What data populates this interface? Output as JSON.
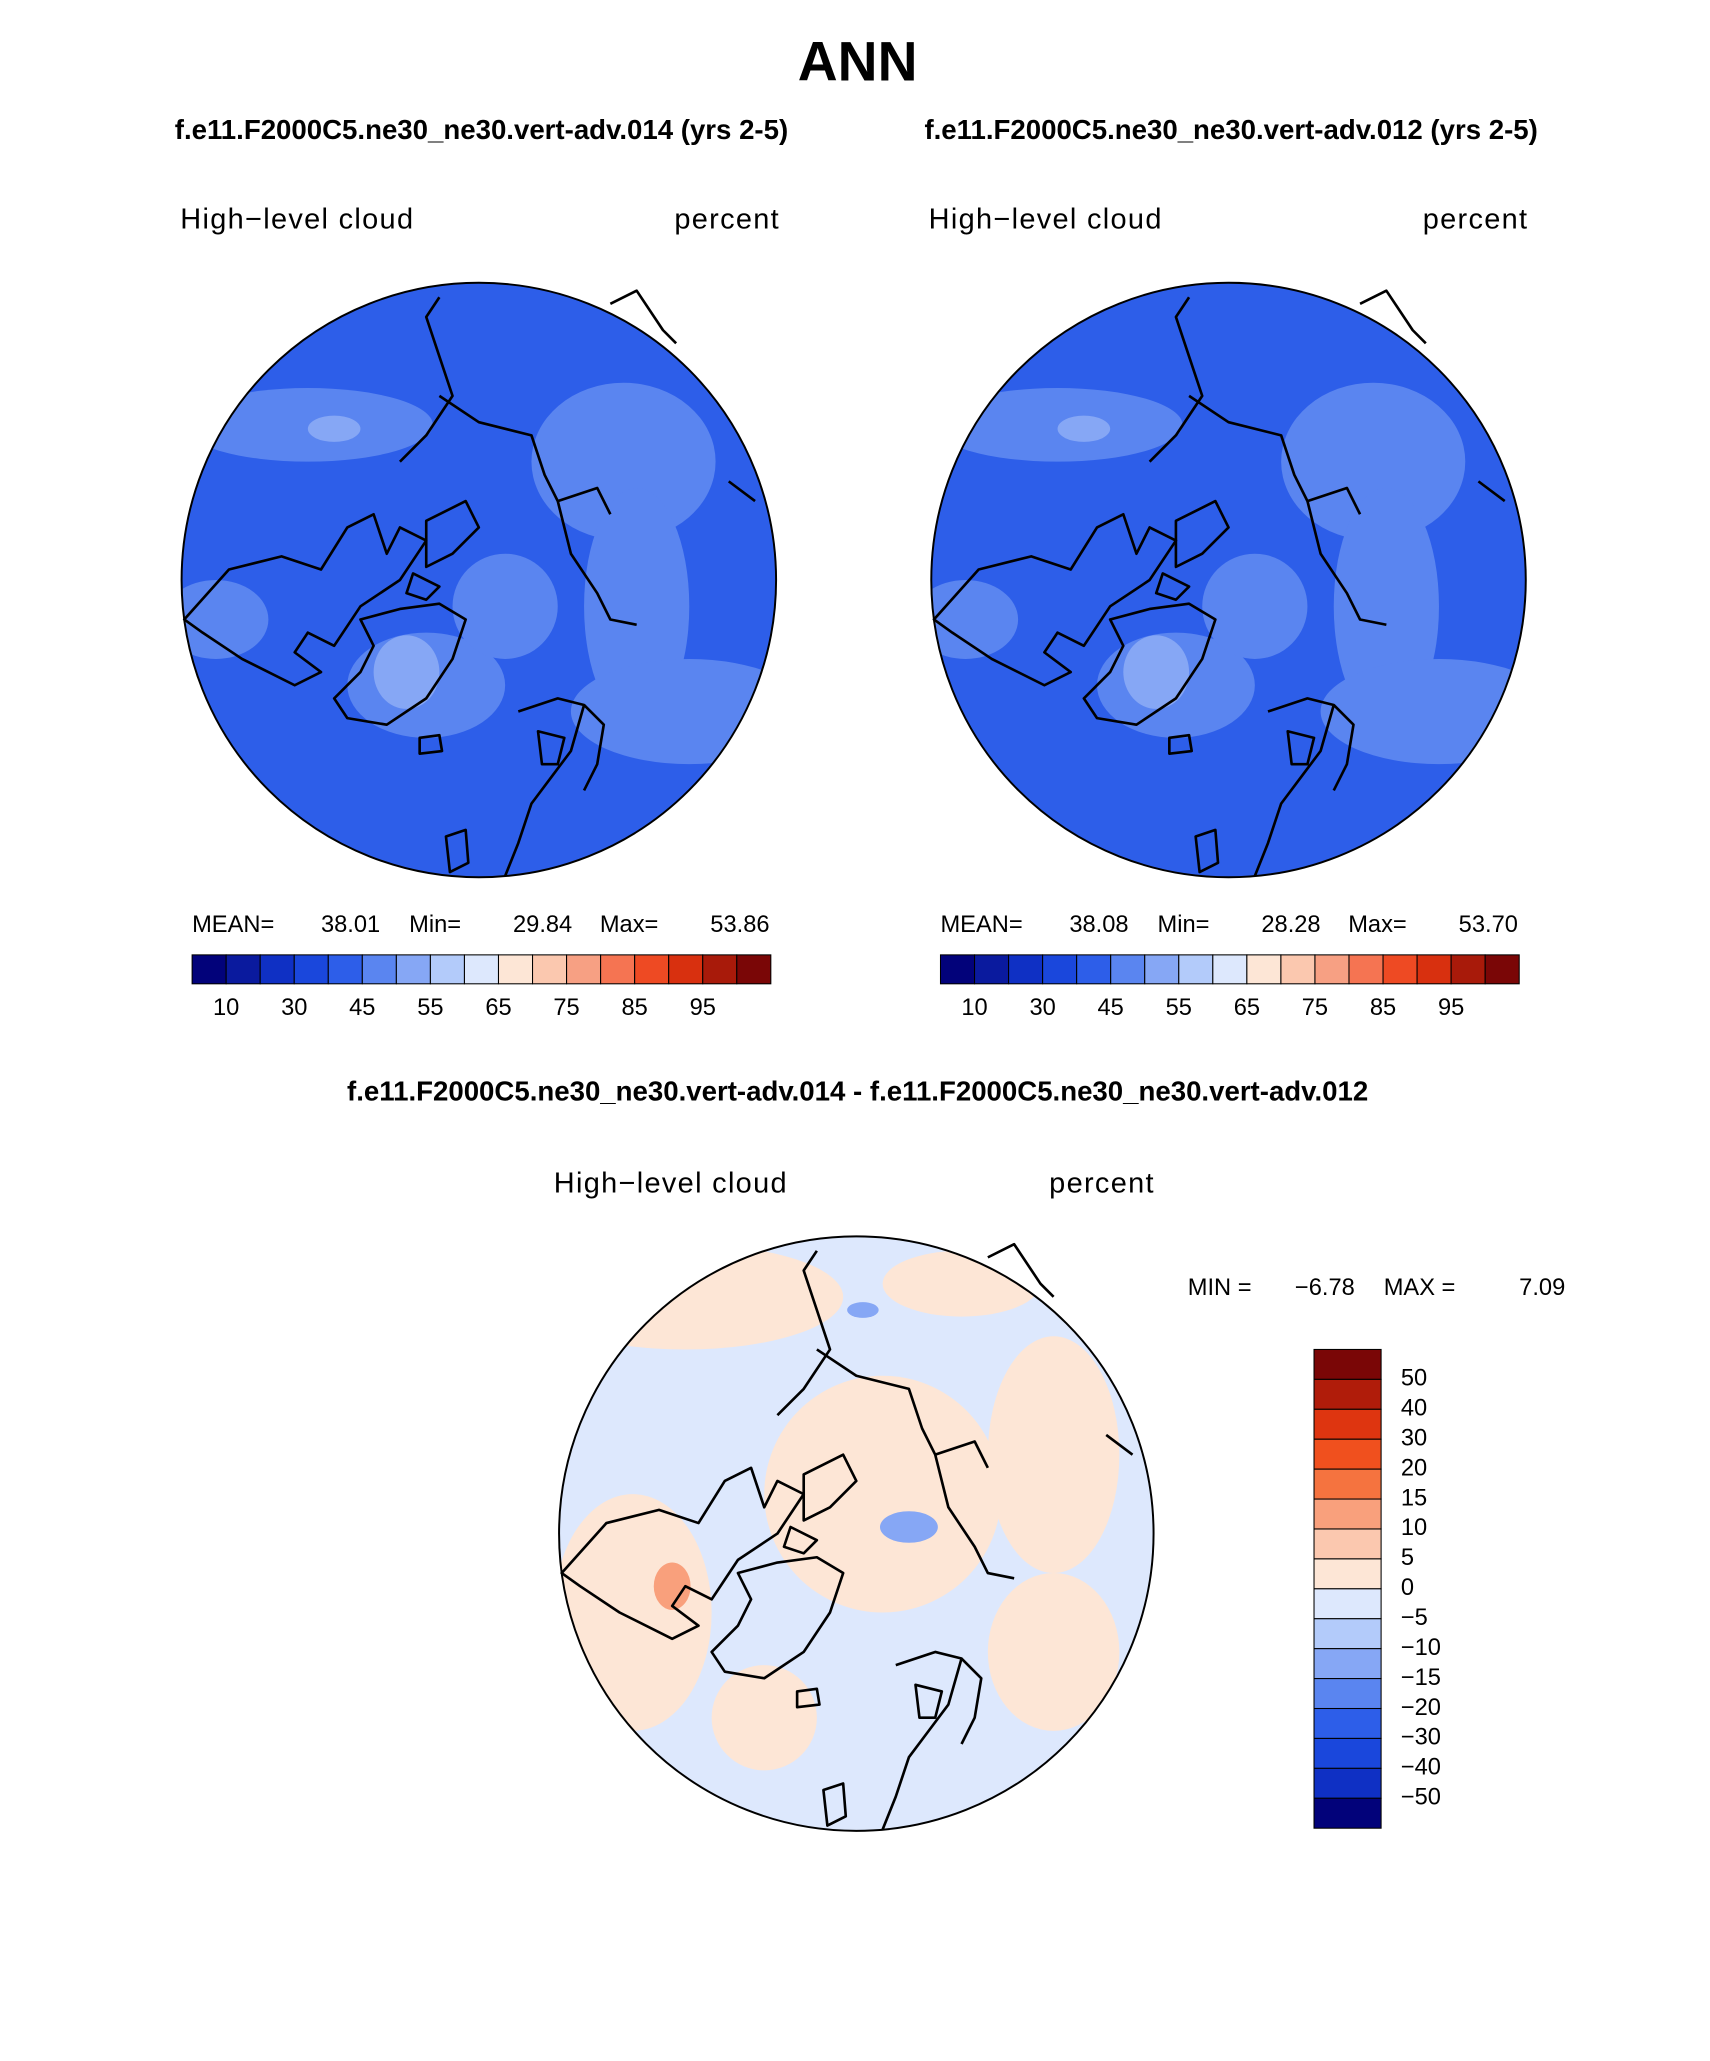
{
  "header": {
    "title": "ANN",
    "subtitle_left": "f.e11.F2000C5.ne30_ne30.vert-adv.014 (yrs 2-5)",
    "subtitle_right": "f.e11.F2000C5.ne30_ne30.vert-adv.012 (yrs 2-5)",
    "diff_title": "f.e11.F2000C5.ne30_ne30.vert-adv.014 - f.e11.F2000C5.ne30_ne30.vert-adv.012"
  },
  "panels": [
    {
      "variable": "High−level cloud",
      "units": "percent",
      "mean_label": "MEAN=",
      "mean": "38.01",
      "min_label": "Min=",
      "min": "29.84",
      "max_label": "Max=",
      "max": "53.86"
    },
    {
      "variable": "High−level cloud",
      "units": "percent",
      "mean_label": "MEAN=",
      "mean": "38.08",
      "min_label": "Min=",
      "min": "28.28",
      "max_label": "Max=",
      "max": "53.70"
    }
  ],
  "colorbar": {
    "labels": [
      "10",
      "30",
      "45",
      "55",
      "65",
      "75",
      "85",
      "95"
    ],
    "colors": [
      "#02027a",
      "#0a1a9e",
      "#0f30c4",
      "#1a47dc",
      "#2d5ee9",
      "#5a85f0",
      "#86a7f5",
      "#b3cbfa",
      "#dde8fd",
      "#fde6d6",
      "#fbc8af",
      "#f7a083",
      "#f57452",
      "#ee4a23",
      "#d8300f",
      "#a81a0a",
      "#7a0606"
    ]
  },
  "diff": {
    "variable": "High−level cloud",
    "units": "percent",
    "min_label": "MIN =",
    "min": "−6.78",
    "max_label": "MAX =",
    "max": "7.09",
    "colorbar": {
      "labels": [
        "50",
        "40",
        "30",
        "20",
        "15",
        "10",
        "5",
        "0",
        "−5",
        "−10",
        "−15",
        "−20",
        "−30",
        "−40",
        "−50"
      ],
      "colors": [
        "#7a0606",
        "#b01c0a",
        "#de3510",
        "#f0501e",
        "#f5733f",
        "#f9a07c",
        "#fbc8af",
        "#fde6d6",
        "#dde8fd",
        "#b3cbfa",
        "#86a7f5",
        "#5a85f0",
        "#2d5ee9",
        "#1a47dc",
        "#0f30c4",
        "#02027a"
      ]
    }
  }
}
